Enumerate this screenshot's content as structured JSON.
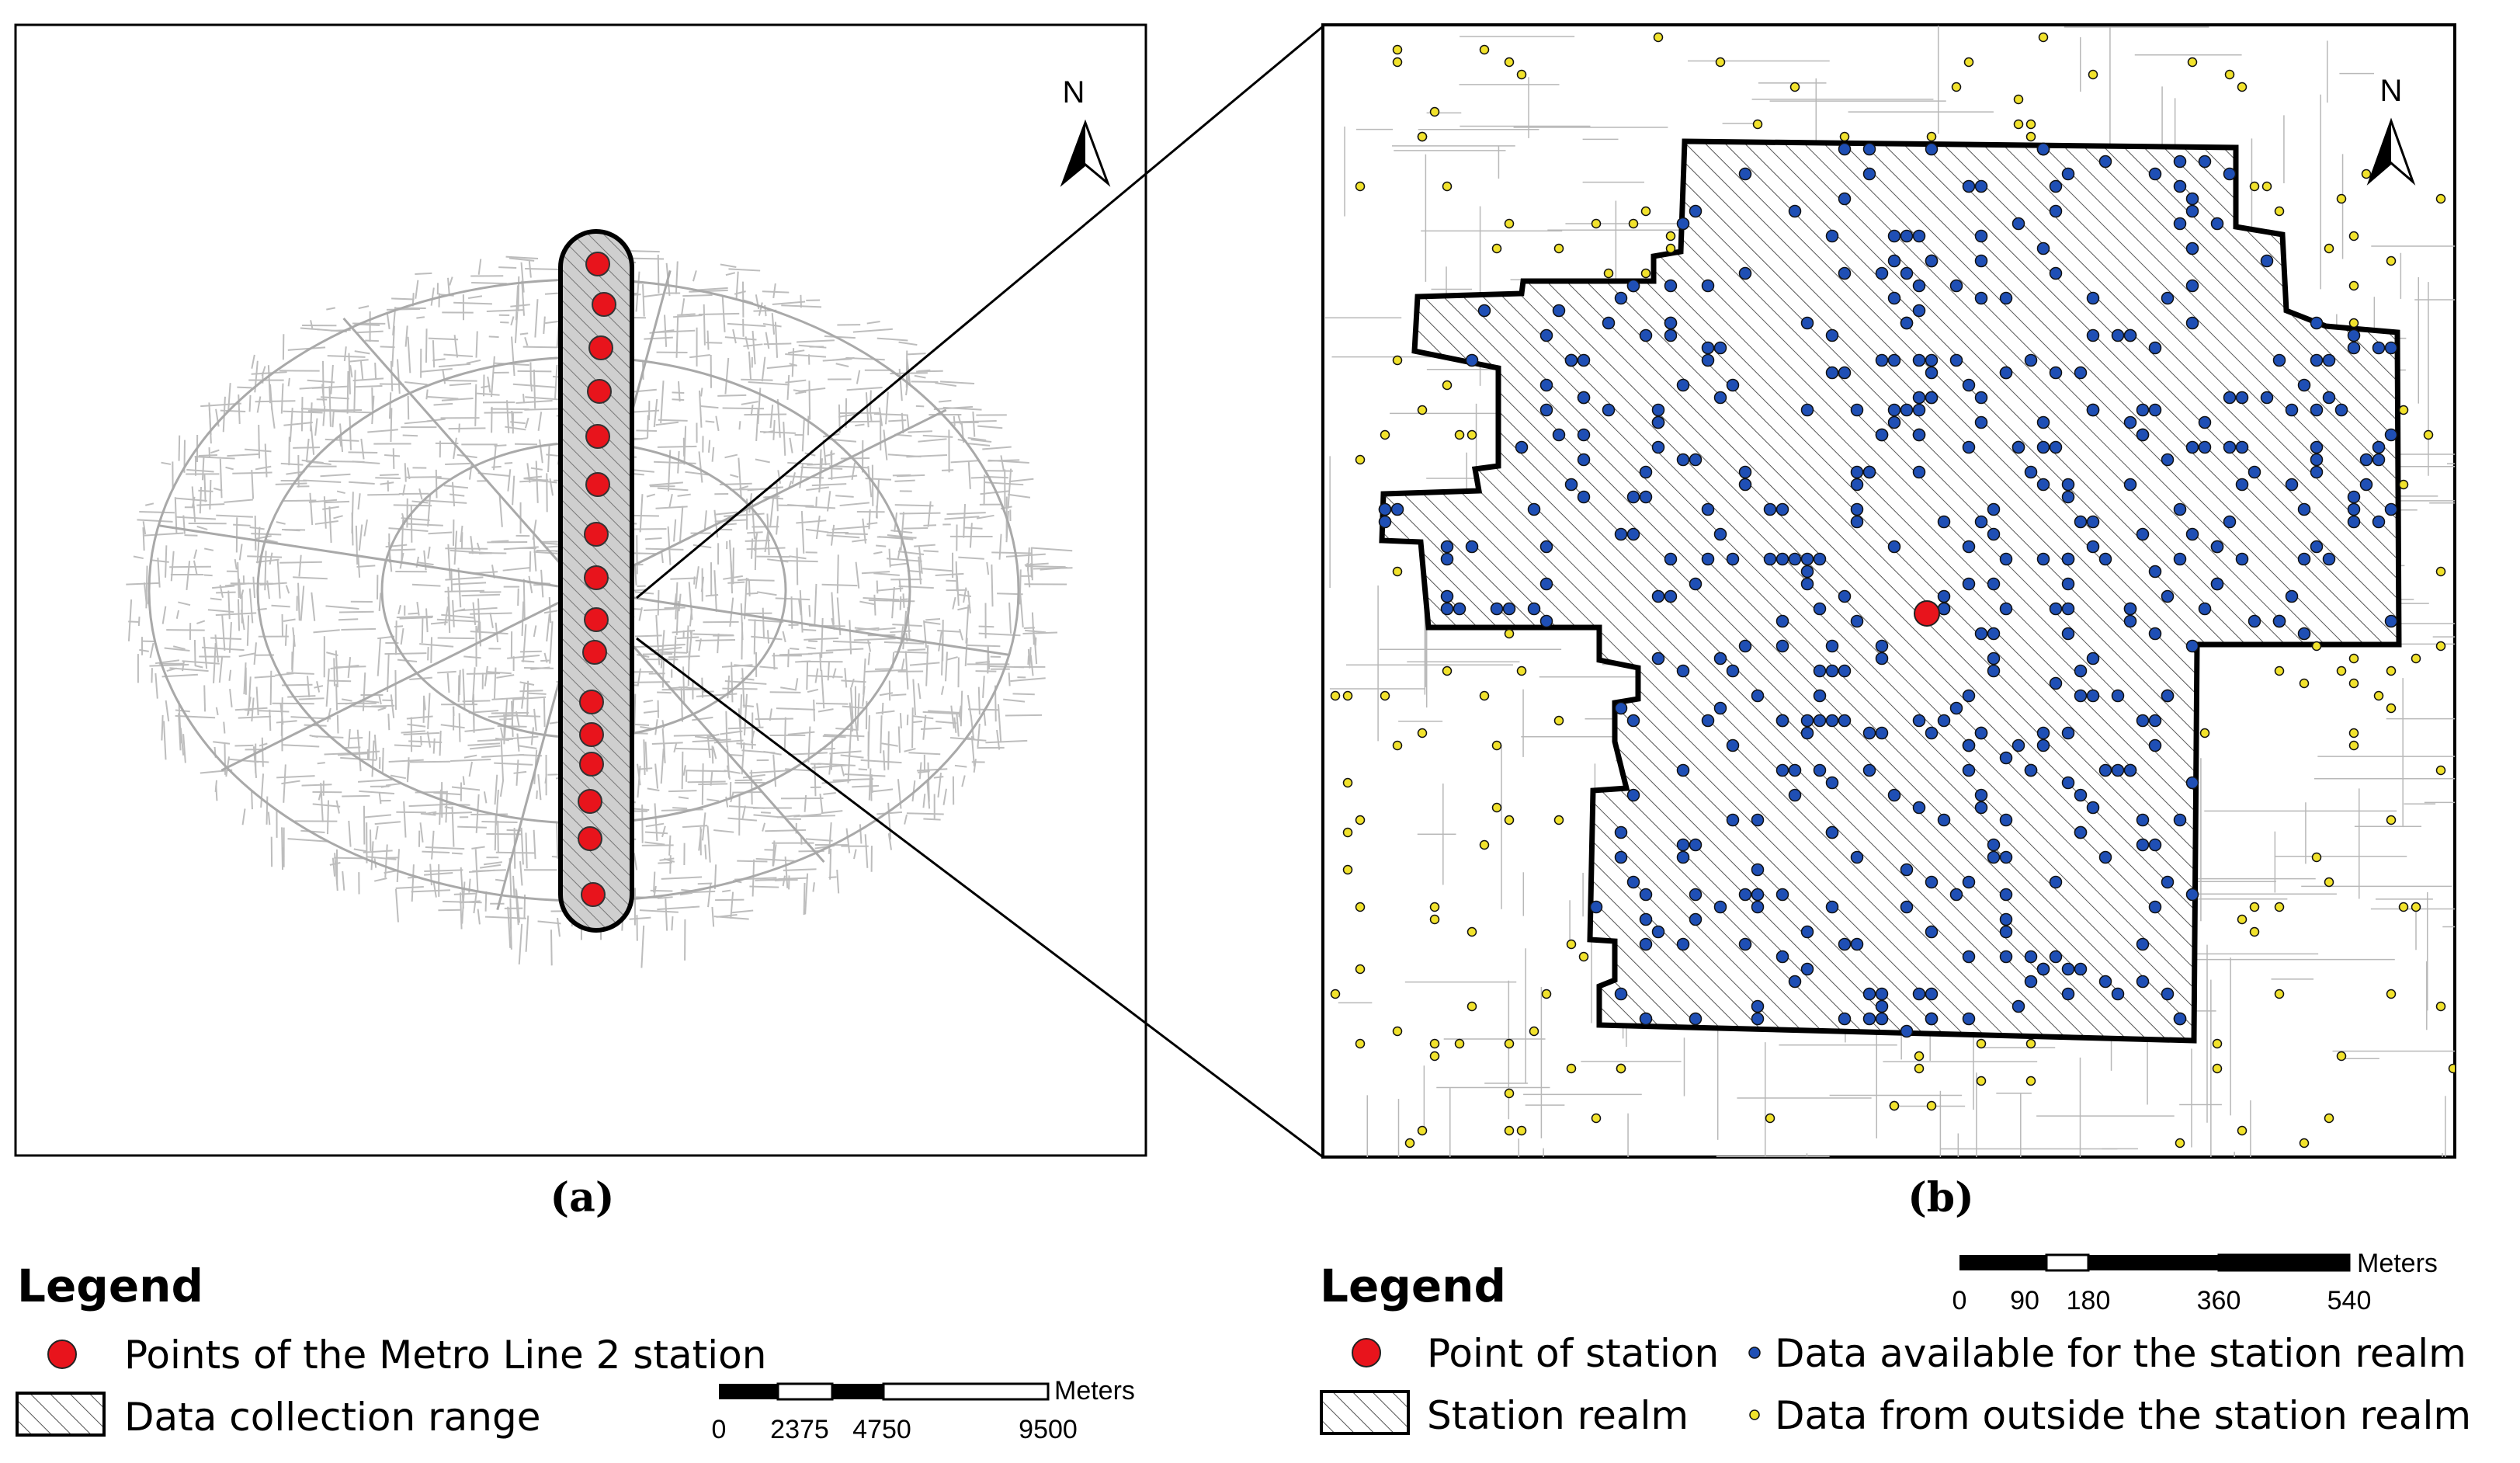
{
  "panel_a": {
    "label": "(a)",
    "north_label": "N",
    "station_count": 16,
    "colors": {
      "station": "#e8141c",
      "roads": "#bdbdbd",
      "buffer": "#000000"
    }
  },
  "panel_b": {
    "label": "(b)",
    "north_label": "N",
    "colors": {
      "station": "#e8141c",
      "inside": "#1f4fb5",
      "outside": "#f1e22c",
      "realm_outline": "#000000"
    }
  },
  "legend_a": {
    "title": "Legend",
    "items": [
      {
        "label": "Points of the Metro Line 2 station",
        "icon": "red-circle-icon"
      },
      {
        "label": "Data collection range",
        "icon": "hatched-box-icon"
      }
    ],
    "scale": {
      "unit": "Meters",
      "ticks": [
        "0",
        "2375",
        "4750",
        "9500"
      ]
    }
  },
  "legend_b": {
    "title": "Legend",
    "items": [
      {
        "label": "Point of station",
        "icon": "red-circle-icon"
      },
      {
        "label": "Data available for the station realm",
        "icon": "blue-dot-icon"
      },
      {
        "label": "Station realm",
        "icon": "hatched-box-icon"
      },
      {
        "label": "Data from outside the station realm",
        "icon": "yellow-dot-icon"
      }
    ],
    "scale": {
      "unit": "Meters",
      "ticks": [
        "0",
        "90",
        "180",
        "360",
        "540"
      ]
    }
  }
}
